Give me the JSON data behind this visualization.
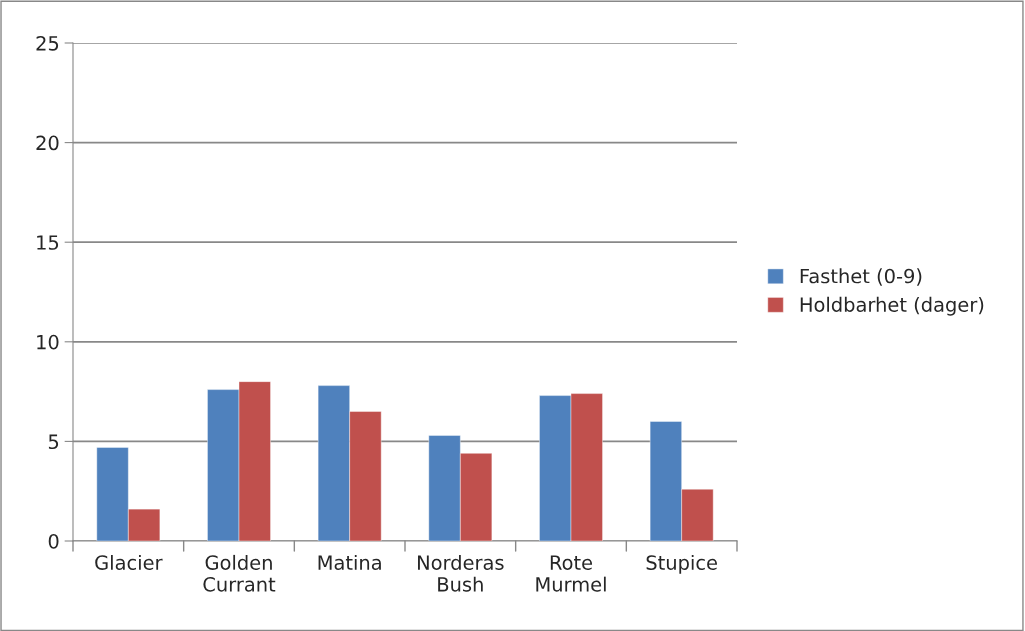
{
  "chart_data": {
    "type": "bar",
    "categories": [
      "Glacier",
      "Golden Currant",
      "Matina",
      "Norderas Bush",
      "Rote Murmel",
      "Stupice"
    ],
    "series": [
      {
        "name": "Fasthet (0-9)",
        "color": "#4f81bd",
        "values": [
          4.7,
          7.6,
          7.8,
          5.3,
          7.3,
          6.0
        ]
      },
      {
        "name": "Holdbarhet (dager)",
        "color": "#c0504d",
        "values": [
          1.6,
          8.0,
          6.5,
          4.4,
          7.4,
          2.6
        ]
      }
    ],
    "ylim": [
      0,
      25
    ],
    "yticks": [
      0,
      5,
      10,
      15,
      20,
      25
    ],
    "grid": "y",
    "legend": "right"
  }
}
